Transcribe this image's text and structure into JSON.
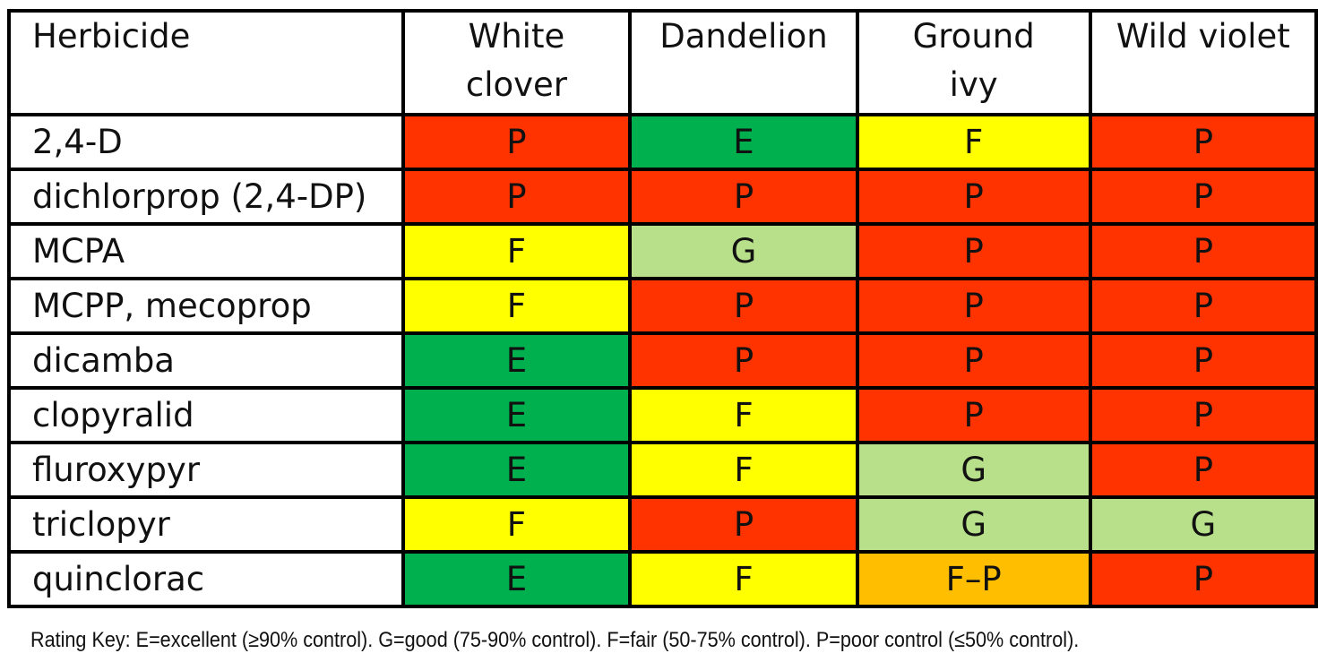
{
  "chart_data": {
    "type": "table",
    "columns": [
      "Herbicide",
      "White clover",
      "Dandelion",
      "Ground ivy",
      "Wild violet"
    ],
    "rows": [
      {
        "herbicide": "2,4-D",
        "ratings": [
          "P",
          "E",
          "F",
          "P"
        ]
      },
      {
        "herbicide": "dichlorprop (2,4-DP)",
        "ratings": [
          "P",
          "P",
          "P",
          "P"
        ]
      },
      {
        "herbicide": "MCPA",
        "ratings": [
          "F",
          "G",
          "P",
          "P"
        ]
      },
      {
        "herbicide": "MCPP, mecoprop",
        "ratings": [
          "F",
          "P",
          "P",
          "P"
        ]
      },
      {
        "herbicide": "dicamba",
        "ratings": [
          "E",
          "P",
          "P",
          "P"
        ]
      },
      {
        "herbicide": "clopyralid",
        "ratings": [
          "E",
          "F",
          "P",
          "P"
        ]
      },
      {
        "herbicide": "fluroxypyr",
        "ratings": [
          "E",
          "F",
          "G",
          "P"
        ]
      },
      {
        "herbicide": "triclopyr",
        "ratings": [
          "F",
          "P",
          "G",
          "G"
        ]
      },
      {
        "herbicide": "quinclorac",
        "ratings": [
          "E",
          "F",
          "F–P",
          "P"
        ]
      }
    ],
    "footnote": "Rating Key: E=excellent (≥90% control). G=good (75-90% control). F=fair (50-75% control). P=poor control (≤50% control).",
    "rating_colors": {
      "E": "#00b04f",
      "G": "#b8df8a",
      "F": "#ffff00",
      "F–P": "#ffbf00",
      "P": "#ff3300"
    }
  }
}
